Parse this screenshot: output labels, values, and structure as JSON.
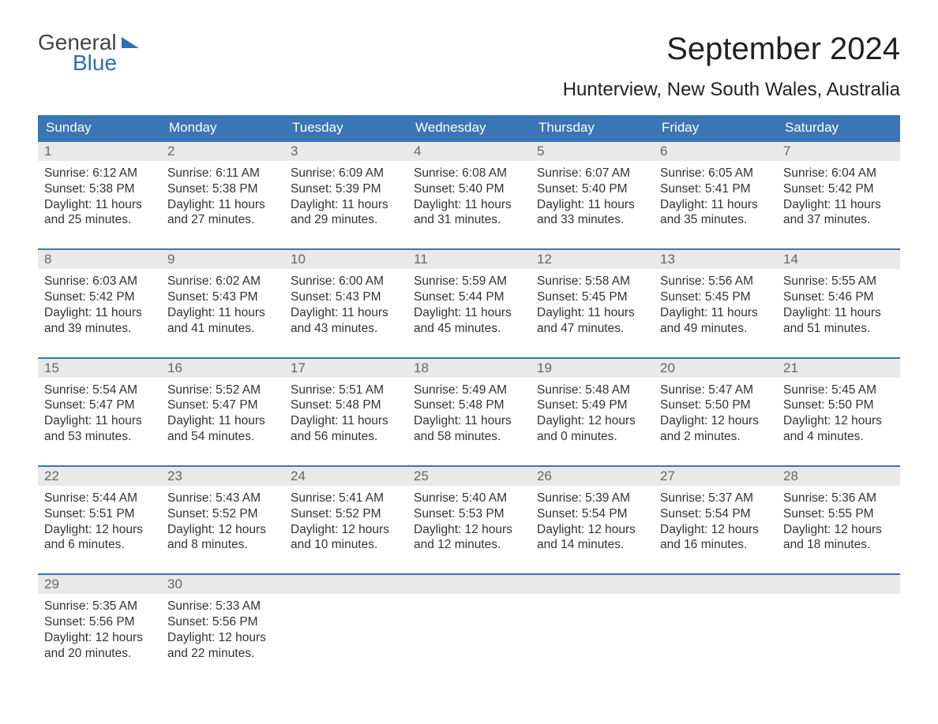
{
  "brand": {
    "line1": "General",
    "line2": "Blue"
  },
  "title": "September 2024",
  "subtitle": "Hunterview, New South Wales, Australia",
  "colors": {
    "header_bg": "#3a76b5",
    "header_text": "#ffffff",
    "daynum_bg": "#e9e9e9",
    "daynum_text": "#666666",
    "body_text": "#333333",
    "rule": "#3a76b5",
    "logo_blue": "#2f6fb3",
    "page_bg": "#ffffff"
  },
  "dow": [
    "Sunday",
    "Monday",
    "Tuesday",
    "Wednesday",
    "Thursday",
    "Friday",
    "Saturday"
  ],
  "weeks": [
    [
      {
        "n": "1",
        "sr": "6:12 AM",
        "ss": "5:38 PM",
        "dl": "11 hours and 25 minutes."
      },
      {
        "n": "2",
        "sr": "6:11 AM",
        "ss": "5:38 PM",
        "dl": "11 hours and 27 minutes."
      },
      {
        "n": "3",
        "sr": "6:09 AM",
        "ss": "5:39 PM",
        "dl": "11 hours and 29 minutes."
      },
      {
        "n": "4",
        "sr": "6:08 AM",
        "ss": "5:40 PM",
        "dl": "11 hours and 31 minutes."
      },
      {
        "n": "5",
        "sr": "6:07 AM",
        "ss": "5:40 PM",
        "dl": "11 hours and 33 minutes."
      },
      {
        "n": "6",
        "sr": "6:05 AM",
        "ss": "5:41 PM",
        "dl": "11 hours and 35 minutes."
      },
      {
        "n": "7",
        "sr": "6:04 AM",
        "ss": "5:42 PM",
        "dl": "11 hours and 37 minutes."
      }
    ],
    [
      {
        "n": "8",
        "sr": "6:03 AM",
        "ss": "5:42 PM",
        "dl": "11 hours and 39 minutes."
      },
      {
        "n": "9",
        "sr": "6:02 AM",
        "ss": "5:43 PM",
        "dl": "11 hours and 41 minutes."
      },
      {
        "n": "10",
        "sr": "6:00 AM",
        "ss": "5:43 PM",
        "dl": "11 hours and 43 minutes."
      },
      {
        "n": "11",
        "sr": "5:59 AM",
        "ss": "5:44 PM",
        "dl": "11 hours and 45 minutes."
      },
      {
        "n": "12",
        "sr": "5:58 AM",
        "ss": "5:45 PM",
        "dl": "11 hours and 47 minutes."
      },
      {
        "n": "13",
        "sr": "5:56 AM",
        "ss": "5:45 PM",
        "dl": "11 hours and 49 minutes."
      },
      {
        "n": "14",
        "sr": "5:55 AM",
        "ss": "5:46 PM",
        "dl": "11 hours and 51 minutes."
      }
    ],
    [
      {
        "n": "15",
        "sr": "5:54 AM",
        "ss": "5:47 PM",
        "dl": "11 hours and 53 minutes."
      },
      {
        "n": "16",
        "sr": "5:52 AM",
        "ss": "5:47 PM",
        "dl": "11 hours and 54 minutes."
      },
      {
        "n": "17",
        "sr": "5:51 AM",
        "ss": "5:48 PM",
        "dl": "11 hours and 56 minutes."
      },
      {
        "n": "18",
        "sr": "5:49 AM",
        "ss": "5:48 PM",
        "dl": "11 hours and 58 minutes."
      },
      {
        "n": "19",
        "sr": "5:48 AM",
        "ss": "5:49 PM",
        "dl": "12 hours and 0 minutes."
      },
      {
        "n": "20",
        "sr": "5:47 AM",
        "ss": "5:50 PM",
        "dl": "12 hours and 2 minutes."
      },
      {
        "n": "21",
        "sr": "5:45 AM",
        "ss": "5:50 PM",
        "dl": "12 hours and 4 minutes."
      }
    ],
    [
      {
        "n": "22",
        "sr": "5:44 AM",
        "ss": "5:51 PM",
        "dl": "12 hours and 6 minutes."
      },
      {
        "n": "23",
        "sr": "5:43 AM",
        "ss": "5:52 PM",
        "dl": "12 hours and 8 minutes."
      },
      {
        "n": "24",
        "sr": "5:41 AM",
        "ss": "5:52 PM",
        "dl": "12 hours and 10 minutes."
      },
      {
        "n": "25",
        "sr": "5:40 AM",
        "ss": "5:53 PM",
        "dl": "12 hours and 12 minutes."
      },
      {
        "n": "26",
        "sr": "5:39 AM",
        "ss": "5:54 PM",
        "dl": "12 hours and 14 minutes."
      },
      {
        "n": "27",
        "sr": "5:37 AM",
        "ss": "5:54 PM",
        "dl": "12 hours and 16 minutes."
      },
      {
        "n": "28",
        "sr": "5:36 AM",
        "ss": "5:55 PM",
        "dl": "12 hours and 18 minutes."
      }
    ],
    [
      {
        "n": "29",
        "sr": "5:35 AM",
        "ss": "5:56 PM",
        "dl": "12 hours and 20 minutes."
      },
      {
        "n": "30",
        "sr": "5:33 AM",
        "ss": "5:56 PM",
        "dl": "12 hours and 22 minutes."
      },
      null,
      null,
      null,
      null,
      null
    ]
  ],
  "labels": {
    "sunrise": "Sunrise: ",
    "sunset": "Sunset: ",
    "daylight": "Daylight: "
  }
}
